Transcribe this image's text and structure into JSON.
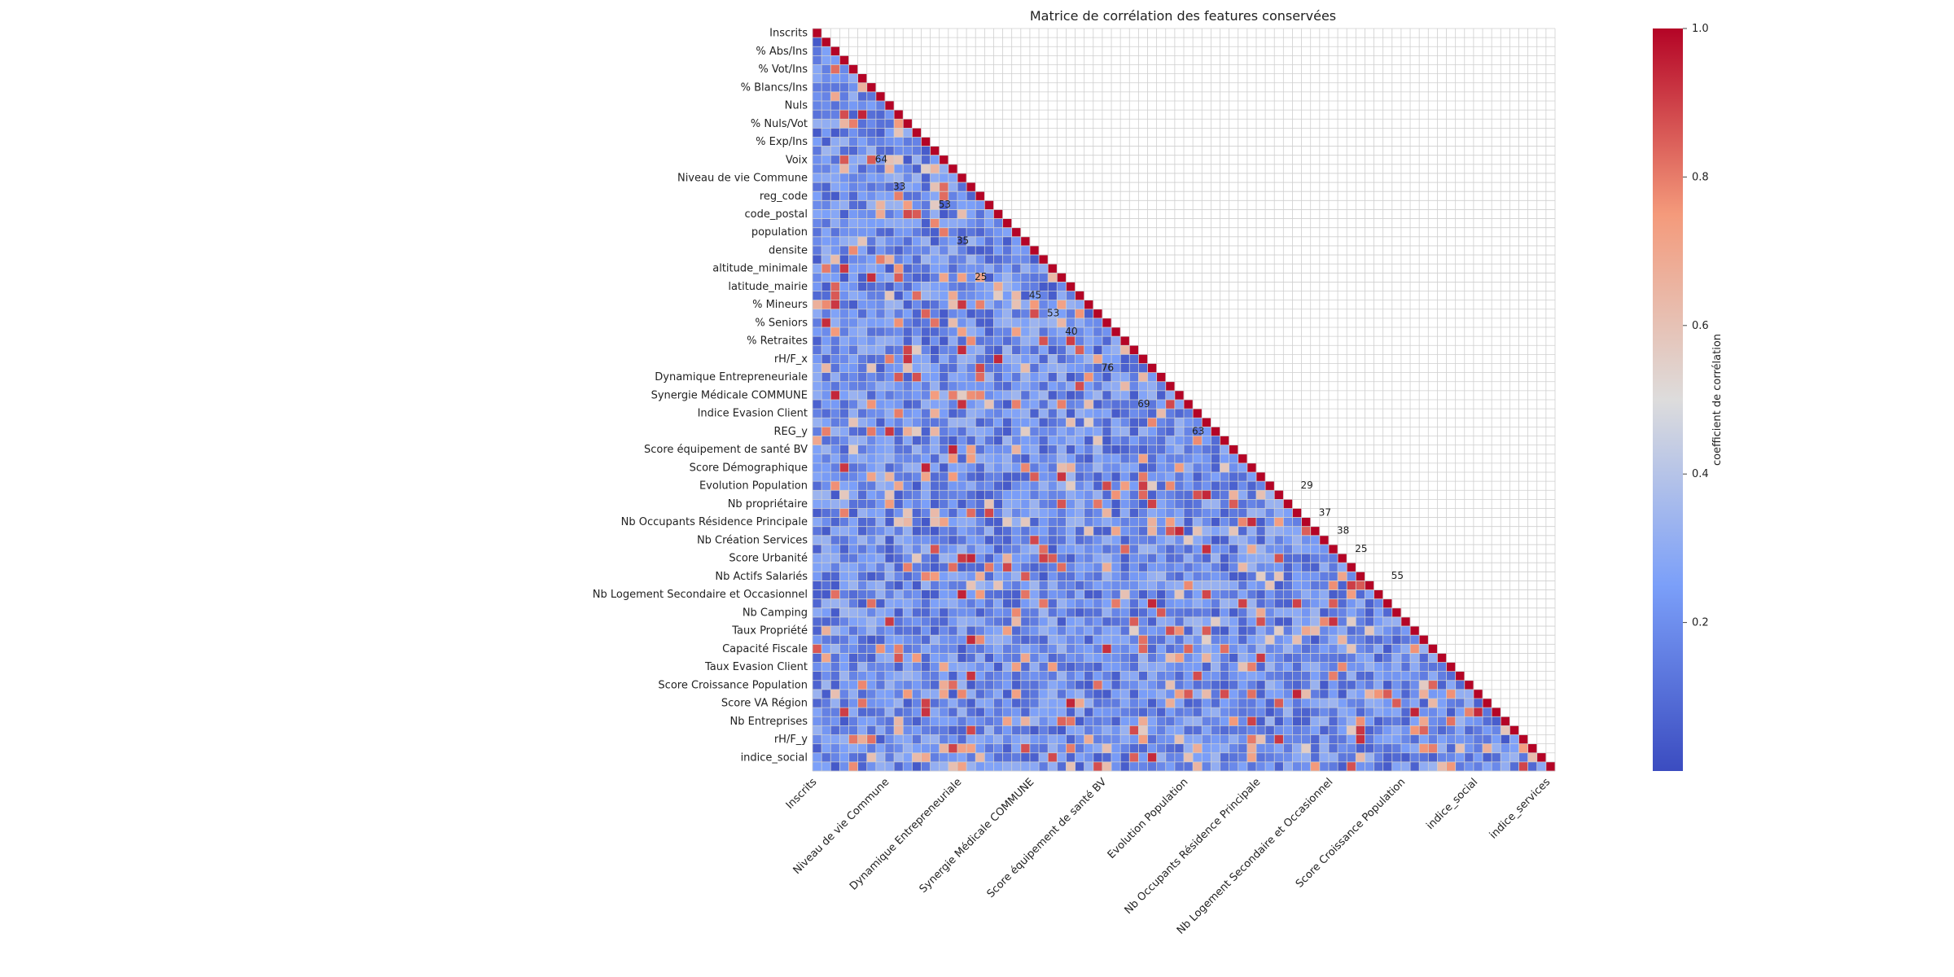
{
  "chart_data": {
    "type": "heatmap",
    "title": "Matrice de corrélation des features conservées",
    "mask": "upper-triangle",
    "annotations": "values shown in each cell (mostly illegible)",
    "colormap": "coolwarm",
    "grid": true,
    "colorbar": {
      "label": "coefficient de corrélation",
      "ticks": [
        "0.2",
        "0.4",
        "0.6",
        "0.8",
        "1.0"
      ],
      "range": [
        0.0,
        1.0
      ],
      "placement": "right"
    },
    "y_tick_labels": [
      "Inscrits",
      "% Abs/Ins",
      "% Vot/Ins",
      "% Blancs/Ins",
      "Nuls",
      "% Nuls/Vot",
      "% Exp/Ins",
      "Voix",
      "Niveau de vie Commune",
      "reg_code",
      "code_postal",
      "population",
      "densite",
      "altitude_minimale",
      "latitude_mairie",
      "% Mineurs",
      "% Seniors",
      "% Retraites",
      "rH/F_x",
      "Dynamique Entrepreneuriale",
      "Synergie Médicale COMMUNE",
      "Indice Evasion Client",
      "REG_y",
      "Score équipement de santé BV",
      "Score Démographique",
      "Evolution Population",
      "Nb propriétaire",
      "Nb Occupants Résidence Principale",
      "Nb Création Services",
      "Score Urbanité",
      "Nb Actifs Salariés",
      "Nb Logement Secondaire et Occasionnel",
      "Nb Camping",
      "Taux Propriété",
      "Capacité Fiscale",
      "Taux Evasion Client",
      "Score Croissance Population",
      "Score VA Région",
      "Nb Entreprises",
      "rH/F_y",
      "indice_social"
    ],
    "x_tick_labels_legible": [
      "Inscrits",
      "Niveau de vie Commune",
      "Dynamique Entrepreneuriale",
      "Synergie Médicale COMMUNE",
      "Score équipement de santé BV",
      "Evolution Population",
      "Nb Occupants Résidence Principale",
      "Nb Logement Secondaire et Occasionnel",
      "Score Croissance Population",
      "indice_social",
      "indice_services"
    ],
    "n_variables": 82,
    "visible_cell_labels": [
      "64",
      "33",
      "53",
      "35",
      "25",
      "45",
      "53",
      "40",
      "76",
      "76",
      "69",
      "63",
      "29",
      "37",
      "38",
      "25",
      "55"
    ]
  }
}
